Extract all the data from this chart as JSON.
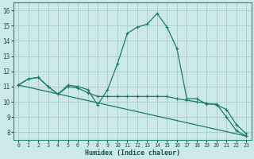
{
  "xlabel": "Humidex (Indice chaleur)",
  "background_color": "#cce8e8",
  "grid_color": "#aacfcf",
  "line_color": "#1a7a6e",
  "xlim": [
    -0.5,
    23.5
  ],
  "ylim": [
    7.5,
    16.5
  ],
  "xticks": [
    0,
    1,
    2,
    3,
    4,
    5,
    6,
    7,
    8,
    9,
    10,
    11,
    12,
    13,
    14,
    15,
    16,
    17,
    18,
    19,
    20,
    21,
    22,
    23
  ],
  "yticks": [
    8,
    9,
    10,
    11,
    12,
    13,
    14,
    15,
    16
  ],
  "line1": [
    11.1,
    11.5,
    11.6,
    11.0,
    10.5,
    11.1,
    11.0,
    10.8,
    9.8,
    10.8,
    12.5,
    14.5,
    14.9,
    15.1,
    15.8,
    14.9,
    13.5,
    10.2,
    10.2,
    9.85,
    9.85,
    9.0,
    8.1,
    7.75
  ],
  "line2": [
    11.1,
    11.5,
    11.6,
    11.0,
    10.5,
    11.0,
    10.9,
    10.6,
    10.35,
    10.35,
    10.35,
    10.35,
    10.35,
    10.35,
    10.35,
    10.35,
    10.2,
    10.1,
    10.0,
    9.9,
    9.8,
    9.5,
    8.5,
    7.9
  ],
  "line3_x": [
    0,
    23
  ],
  "line3_y": [
    11.1,
    7.75
  ]
}
